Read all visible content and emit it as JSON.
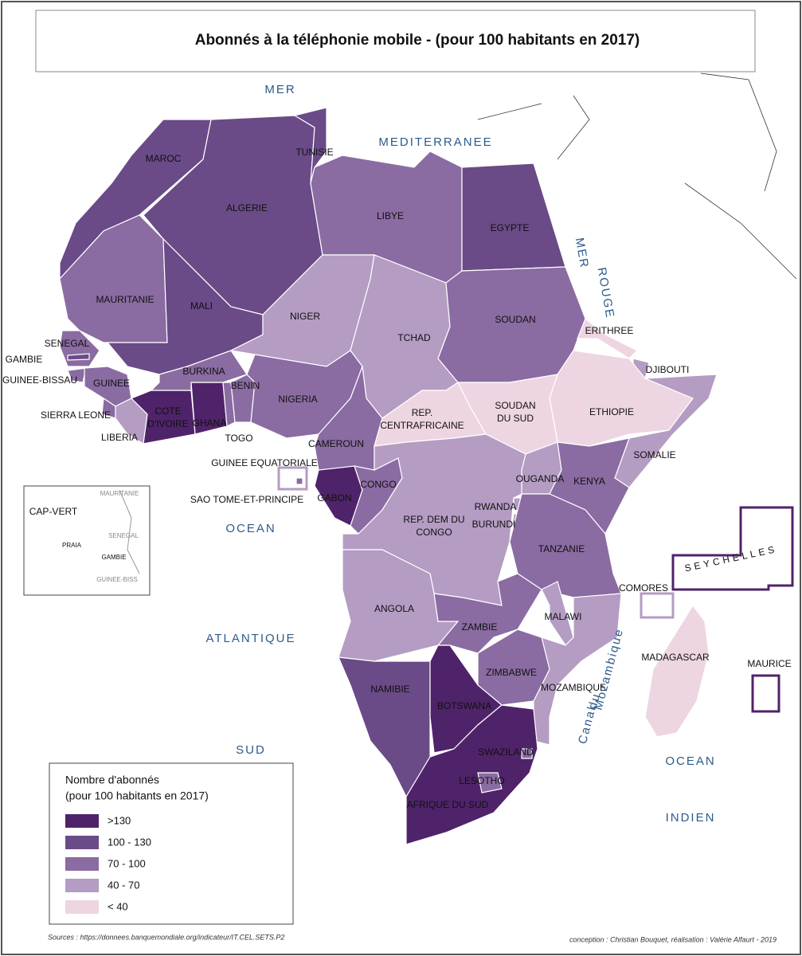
{
  "title": "Abonnés à la téléphonie mobile - (pour 100 habitants en 2017)",
  "seas": [
    "MER",
    "MEDITERRANEE",
    "MER",
    "ROUGE",
    "OCEAN",
    "ATLANTIQUE",
    "SUD",
    "OCEAN",
    "INDIEN",
    "Canal",
    "du",
    "Mozambique"
  ],
  "legend": {
    "title": [
      "Nombre d'abonnés",
      "(pour 100 habitants en 2017)"
    ],
    "classes": [
      {
        "label": ">130",
        "color": "#4f2369"
      },
      {
        "label": "100 - 130",
        "color": "#6a4a87"
      },
      {
        "label": "70 - 100",
        "color": "#8a6ba2"
      },
      {
        "label": "40 - 70",
        "color": "#b49cc3"
      },
      {
        "label": "< 40",
        "color": "#eed5e2"
      }
    ]
  },
  "countries": [
    {
      "name": [
        "MAROC"
      ],
      "class": 1
    },
    {
      "name": [
        "ALGERIE"
      ],
      "class": 1
    },
    {
      "name": [
        "TUNISIE"
      ],
      "class": 1
    },
    {
      "name": [
        "LIBYE"
      ],
      "class": 2
    },
    {
      "name": [
        "EGYPTE"
      ],
      "class": 1
    },
    {
      "name": [
        "MAURITANIE"
      ],
      "class": 2
    },
    {
      "name": [
        "MALI"
      ],
      "class": 1
    },
    {
      "name": [
        "NIGER"
      ],
      "class": 3
    },
    {
      "name": [
        "TCHAD"
      ],
      "class": 3
    },
    {
      "name": [
        "SOUDAN"
      ],
      "class": 2
    },
    {
      "name": [
        "ERITHREE"
      ],
      "class": 4
    },
    {
      "name": [
        "DJIBOUTI"
      ],
      "class": 3
    },
    {
      "name": [
        "ETHIOPIE"
      ],
      "class": 4
    },
    {
      "name": [
        "SOMALIE"
      ],
      "class": 3
    },
    {
      "name": [
        "SENEGAL"
      ],
      "class": 2
    },
    {
      "name": [
        "GAMBIE"
      ],
      "class": 1
    },
    {
      "name": [
        "GUINEE-BISSAU"
      ],
      "class": 2
    },
    {
      "name": [
        "GUINEE"
      ],
      "class": 2
    },
    {
      "name": [
        "SIERRA LEONE"
      ],
      "class": 2
    },
    {
      "name": [
        "LIBERIA"
      ],
      "class": 3
    },
    {
      "name": [
        "COTE",
        "D'IVOIRE"
      ],
      "class": 0
    },
    {
      "name": [
        "GHANA"
      ],
      "class": 0
    },
    {
      "name": [
        "BURKINA"
      ],
      "class": 2
    },
    {
      "name": [
        "TOGO"
      ],
      "class": 2
    },
    {
      "name": [
        "BENIN"
      ],
      "class": 2
    },
    {
      "name": [
        "NIGERIA"
      ],
      "class": 2
    },
    {
      "name": [
        "CAMEROUN"
      ],
      "class": 2
    },
    {
      "name": [
        "REP.",
        "CENTRAFRICAINE"
      ],
      "class": 4
    },
    {
      "name": [
        "SOUDAN",
        "DU SUD"
      ],
      "class": 4
    },
    {
      "name": [
        "OUGANDA"
      ],
      "class": 3
    },
    {
      "name": [
        "KENYA"
      ],
      "class": 2
    },
    {
      "name": [
        "GABON"
      ],
      "class": 0
    },
    {
      "name": [
        "GUINEE EQUATORIALE"
      ],
      "class": 3
    },
    {
      "name": [
        "SAO TOME-ET-PRINCIPE"
      ],
      "class": 2
    },
    {
      "name": [
        "CONGO"
      ],
      "class": 2
    },
    {
      "name": [
        "REP. DEM DU",
        "CONGO"
      ],
      "class": 3
    },
    {
      "name": [
        "RWANDA"
      ],
      "class": 3
    },
    {
      "name": [
        "BURUNDI"
      ],
      "class": 3
    },
    {
      "name": [
        "TANZANIE"
      ],
      "class": 2
    },
    {
      "name": [
        "ANGOLA"
      ],
      "class": 3
    },
    {
      "name": [
        "ZAMBIE"
      ],
      "class": 2
    },
    {
      "name": [
        "MALAWI"
      ],
      "class": 3
    },
    {
      "name": [
        "MOZAMBIQUE"
      ],
      "class": 3
    },
    {
      "name": [
        "ZIMBABWE"
      ],
      "class": 2
    },
    {
      "name": [
        "NAMIBIE"
      ],
      "class": 1
    },
    {
      "name": [
        "BOTSWANA"
      ],
      "class": 0
    },
    {
      "name": [
        "AFRIQUE DU SUD"
      ],
      "class": 0
    },
    {
      "name": [
        "SWAZILAND"
      ],
      "class": 2
    },
    {
      "name": [
        "LESOTHO"
      ],
      "class": 2
    },
    {
      "name": [
        "MADAGASCAR"
      ],
      "class": 4
    },
    {
      "name": [
        "COMORES"
      ],
      "class": 3
    },
    {
      "name": [
        "SEYCHELLES"
      ],
      "class": 0
    },
    {
      "name": [
        "MAURICE"
      ],
      "class": 0
    },
    {
      "name": [
        "CAP-VERT"
      ],
      "class": 1
    }
  ],
  "inset_labels": [
    "MAURITANIE",
    "SENEGAL",
    "GAMBIE",
    "GUINEE-BISS",
    "PRAIA"
  ],
  "sources": "Sources : https://donnees.banquemondiale.org/indicateur/IT.CEL.SETS.P2",
  "credits": "conception : Christian Bouquet, réalisation : Valérie Alfaurt - 2019"
}
